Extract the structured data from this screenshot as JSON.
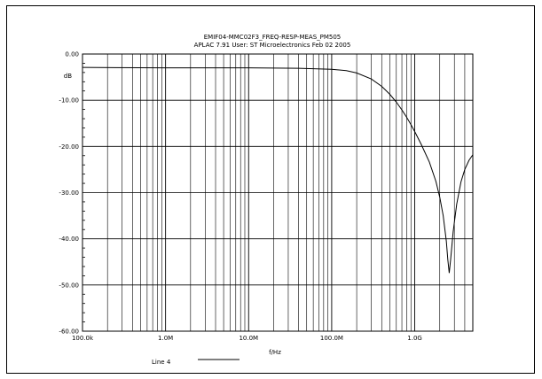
{
  "chart_data": {
    "type": "line",
    "title": "EMIF04-MMC02F3_FREQ-RESP-MEAS_PM505",
    "subtitle": "APLAC 7.91 User: ST Microelectronics  Feb 02 2005",
    "xlabel": "f/Hz",
    "ylabel": "dB",
    "x_scale": "log",
    "xlim": [
      100000,
      5000000000
    ],
    "ylim": [
      -60,
      0
    ],
    "grid": true,
    "x_tick_labels": [
      "100.0k",
      "1.0M",
      "10.0M",
      "100.0M",
      "1.0G"
    ],
    "x_tick_values": [
      100000,
      1000000,
      10000000,
      100000000,
      1000000000
    ],
    "y_tick_labels": [
      "0.00",
      "-10.00",
      "-20.00",
      "-30.00",
      "-40.00",
      "-50.00",
      "-60.00"
    ],
    "y_tick_values": [
      0,
      -10,
      -20,
      -30,
      -40,
      -50,
      -60
    ],
    "legend_position": "bottom-left",
    "series": [
      {
        "name": "Line 4",
        "color": "#000000",
        "x": [
          100000,
          1000000,
          10000000,
          40000000,
          100000000,
          150000000,
          200000000,
          300000000,
          400000000,
          500000000,
          600000000,
          700000000,
          800000000,
          900000000,
          1000000000,
          1200000000,
          1500000000,
          1800000000,
          2000000000,
          2200000000,
          2400000000,
          2500000000,
          2600000000,
          2700000000,
          2900000000,
          3200000000,
          3600000000,
          4000000000,
          4500000000,
          5000000000
        ],
        "y": [
          -2.9,
          -3.0,
          -3.0,
          -3.1,
          -3.3,
          -3.6,
          -4.1,
          -5.4,
          -7.0,
          -8.7,
          -10.4,
          -12.1,
          -13.7,
          -15.3,
          -16.8,
          -19.6,
          -23.4,
          -27.6,
          -31.0,
          -35.0,
          -40.5,
          -44.5,
          -47.4,
          -44.6,
          -38.5,
          -32.5,
          -27.7,
          -25.0,
          -23.0,
          -21.8
        ]
      }
    ]
  }
}
